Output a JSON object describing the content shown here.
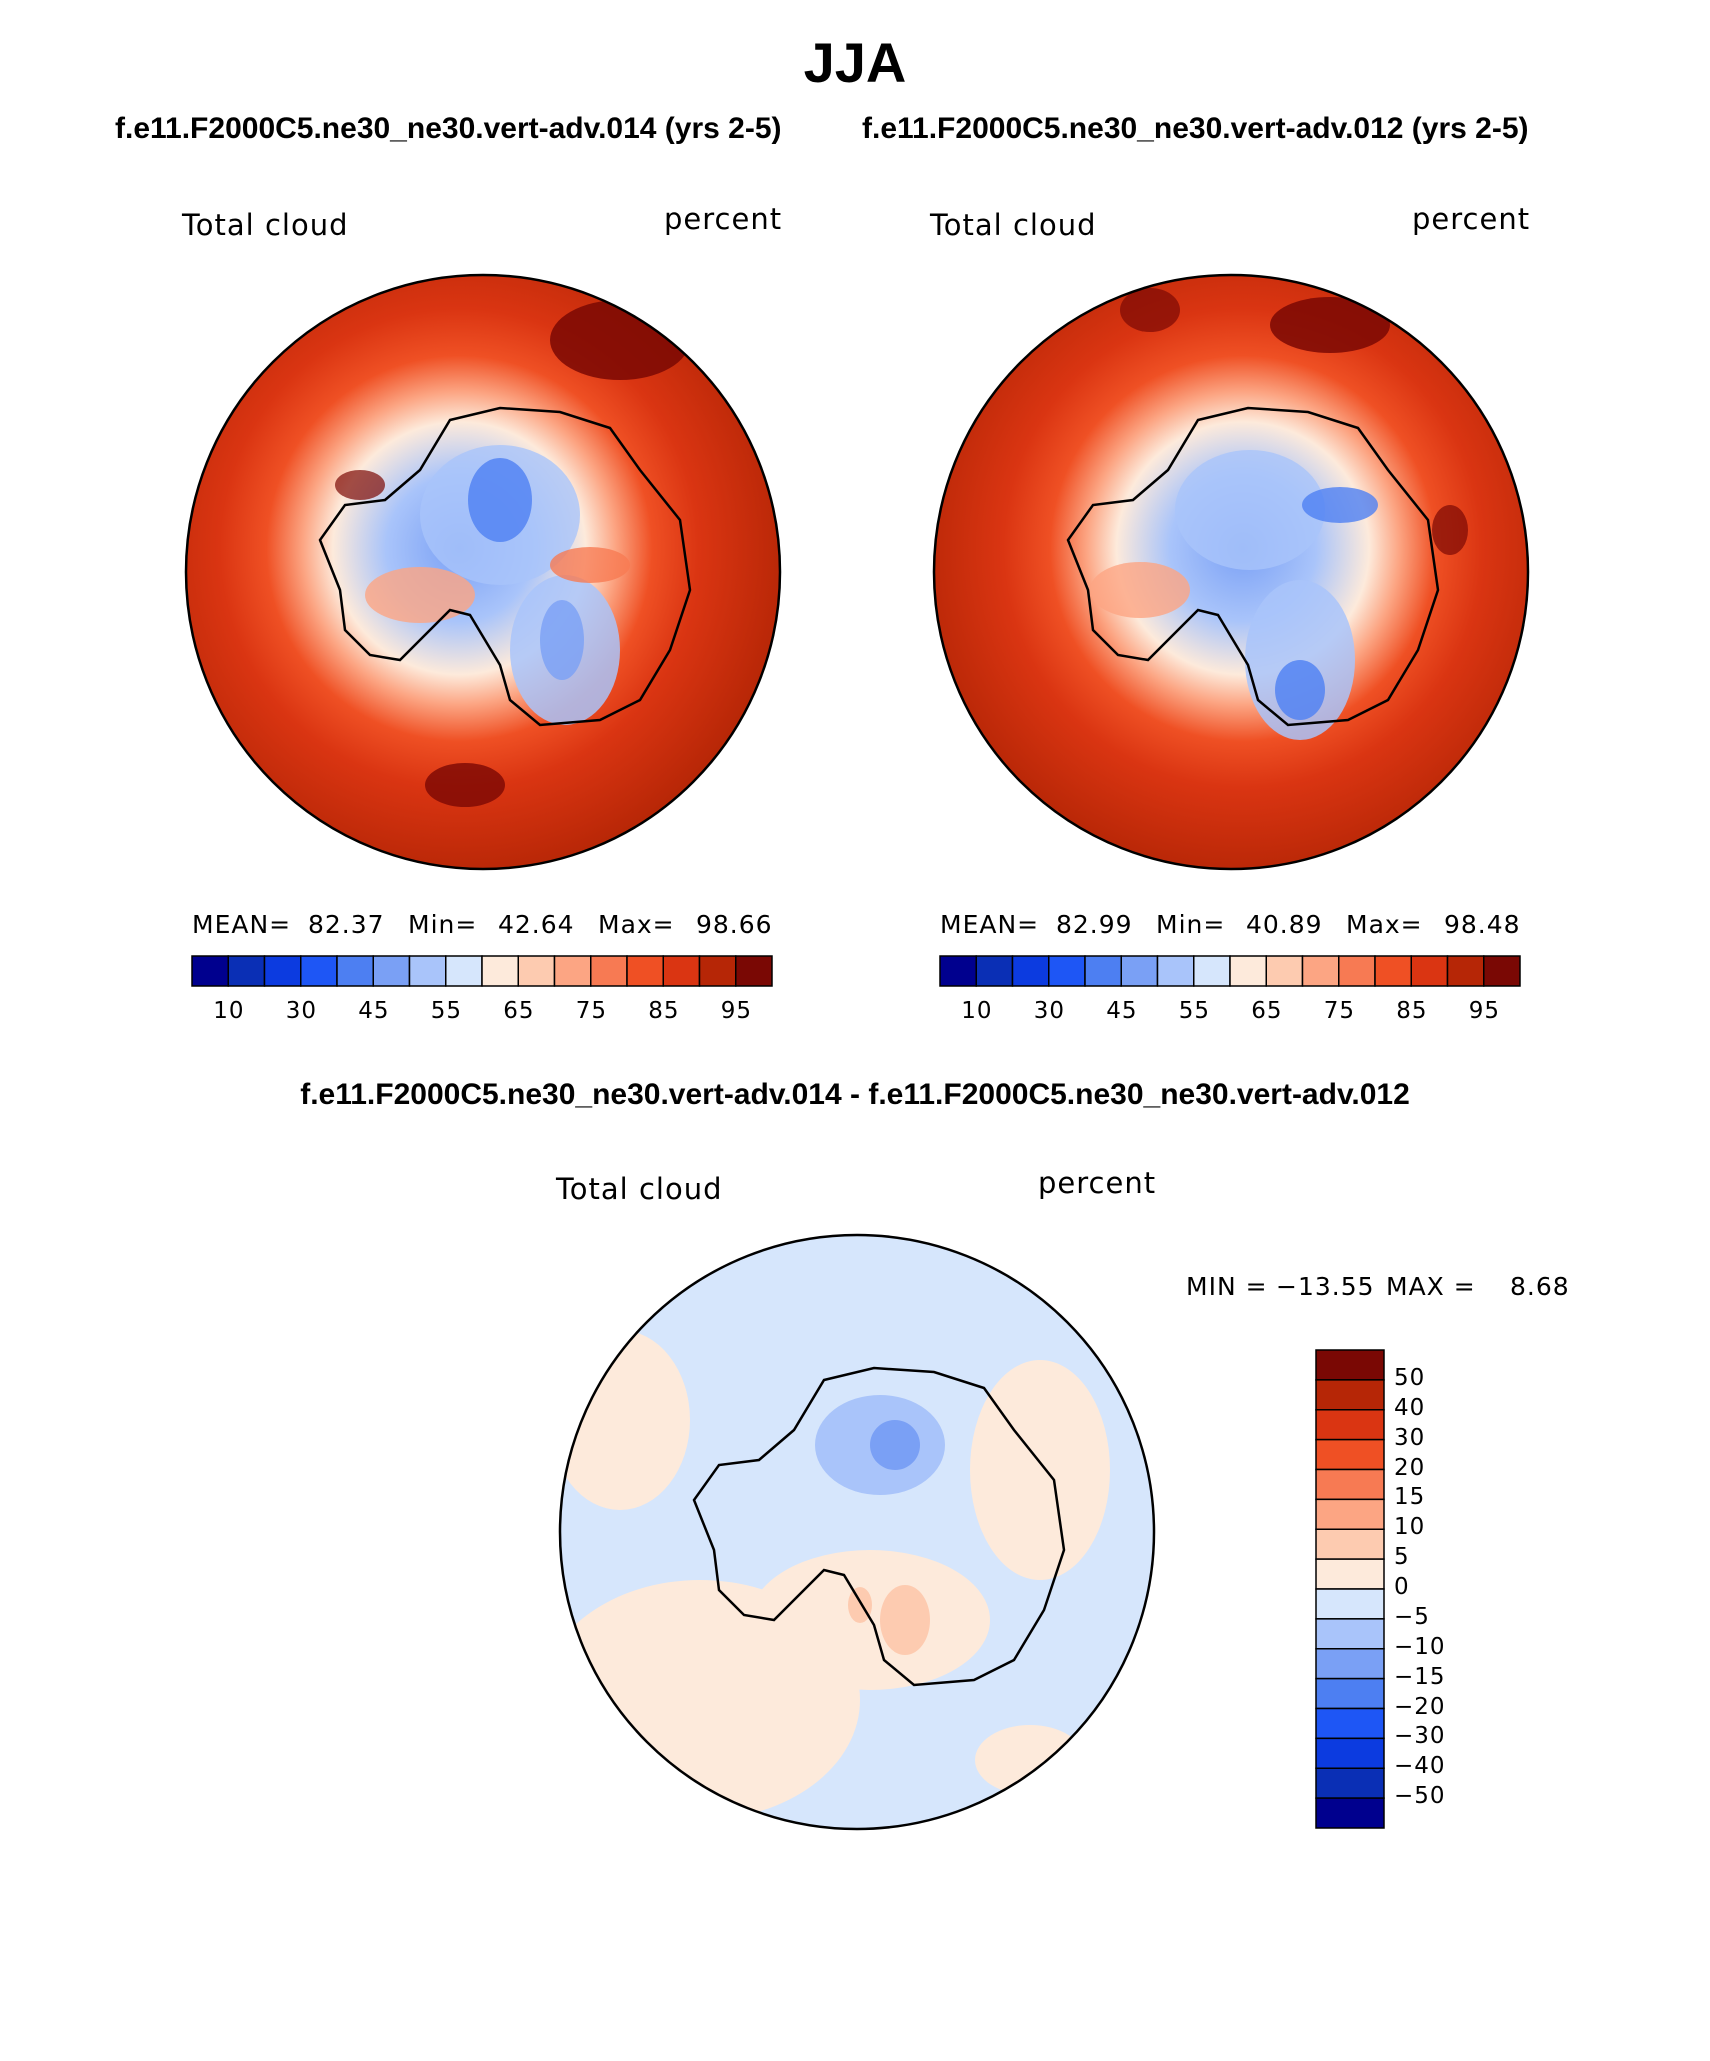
{
  "title": "JJA",
  "case_a": "f.e11.F2000C5.ne30_ne30.vert-adv.014 (yrs 2-5)",
  "case_b": "f.e11.F2000C5.ne30_ne30.vert-adv.012 (yrs 2-5)",
  "diff_title": "f.e11.F2000C5.ne30_ne30.vert-adv.014 - f.e11.F2000C5.ne30_ne30.vert-adv.012",
  "panel_a": {
    "variable": "Total cloud",
    "units": "percent",
    "mean_label": "MEAN=",
    "mean": "82.37",
    "min_label": "Min=",
    "min": "42.64",
    "max_label": "Max=",
    "max": "98.66"
  },
  "panel_b": {
    "variable": "Total cloud",
    "units": "percent",
    "mean_label": "MEAN=",
    "mean": "82.99",
    "min_label": "Min=",
    "min": "40.89",
    "max_label": "Max=",
    "max": "98.48"
  },
  "panel_diff": {
    "variable": "Total cloud",
    "units": "percent",
    "min_label": "MIN =",
    "min": "−13.55",
    "max_label": "MAX =",
    "max": "8.68"
  },
  "colorbar_abs": {
    "tick_labels": [
      "10",
      "30",
      "45",
      "55",
      "65",
      "75",
      "85",
      "95"
    ],
    "colors": [
      "#00008e",
      "#0a2fb5",
      "#0c3be0",
      "#1e56f5",
      "#4d7ff2",
      "#7aa0f5",
      "#a9c4fa",
      "#d6e6fc",
      "#fdeadb",
      "#fdcbb0",
      "#fca583",
      "#f77a53",
      "#ef5024",
      "#da3512",
      "#b62606",
      "#7a0804"
    ]
  },
  "colorbar_diff": {
    "tick_labels": [
      "50",
      "40",
      "30",
      "20",
      "15",
      "10",
      "5",
      "0",
      "−5",
      "−10",
      "−15",
      "−20",
      "−30",
      "−40",
      "−50"
    ],
    "colors": [
      "#7a0804",
      "#b62606",
      "#da3512",
      "#ef5024",
      "#f77a53",
      "#fca583",
      "#fdcbb0",
      "#fdeadb",
      "#d6e6fc",
      "#a9c4fa",
      "#7aa0f5",
      "#4d7ff2",
      "#1e56f5",
      "#0c3be0",
      "#0a2fb5",
      "#00008e"
    ]
  }
}
